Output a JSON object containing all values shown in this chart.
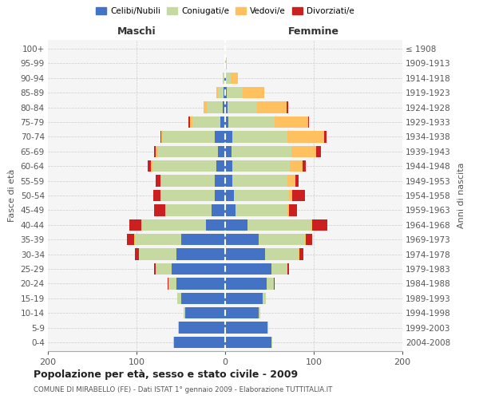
{
  "age_groups": [
    "0-4",
    "5-9",
    "10-14",
    "15-19",
    "20-24",
    "25-29",
    "30-34",
    "35-39",
    "40-44",
    "45-49",
    "50-54",
    "55-59",
    "60-64",
    "65-69",
    "70-74",
    "75-79",
    "80-84",
    "85-89",
    "90-94",
    "95-99",
    "100+"
  ],
  "birth_years": [
    "2004-2008",
    "1999-2003",
    "1994-1998",
    "1989-1993",
    "1984-1988",
    "1979-1983",
    "1974-1978",
    "1969-1973",
    "1964-1968",
    "1959-1963",
    "1954-1958",
    "1949-1953",
    "1944-1948",
    "1939-1943",
    "1934-1938",
    "1929-1933",
    "1924-1928",
    "1919-1923",
    "1914-1918",
    "1909-1913",
    "≤ 1908"
  ],
  "maschi": {
    "celibi": [
      58,
      52,
      45,
      50,
      55,
      60,
      55,
      50,
      22,
      15,
      12,
      12,
      10,
      8,
      12,
      5,
      3,
      2,
      1,
      0,
      0
    ],
    "coniugati": [
      1,
      1,
      2,
      4,
      8,
      18,
      42,
      52,
      72,
      52,
      60,
      60,
      72,
      68,
      58,
      32,
      18,
      6,
      2,
      0,
      0
    ],
    "vedovi": [
      0,
      0,
      0,
      0,
      1,
      0,
      0,
      1,
      1,
      1,
      1,
      1,
      2,
      2,
      2,
      3,
      3,
      2,
      0,
      0,
      0
    ],
    "divorziati": [
      0,
      0,
      0,
      0,
      1,
      2,
      5,
      8,
      13,
      12,
      8,
      5,
      3,
      2,
      1,
      1,
      0,
      0,
      0,
      0,
      0
    ]
  },
  "femmine": {
    "nubili": [
      52,
      48,
      38,
      42,
      47,
      52,
      45,
      38,
      25,
      12,
      10,
      8,
      8,
      7,
      8,
      4,
      3,
      2,
      1,
      0,
      0
    ],
    "coniugate": [
      1,
      1,
      2,
      4,
      8,
      18,
      38,
      52,
      72,
      58,
      62,
      62,
      65,
      68,
      62,
      52,
      33,
      18,
      5,
      1,
      0
    ],
    "vedove": [
      0,
      0,
      0,
      0,
      0,
      0,
      1,
      1,
      1,
      2,
      4,
      9,
      14,
      28,
      42,
      38,
      33,
      24,
      8,
      1,
      0
    ],
    "divorziate": [
      0,
      0,
      0,
      0,
      1,
      2,
      4,
      7,
      17,
      9,
      14,
      4,
      4,
      5,
      2,
      1,
      2,
      0,
      0,
      0,
      0
    ]
  },
  "colors": {
    "celibi": "#4472c4",
    "coniugati": "#c5d9a0",
    "vedovi": "#ffc060",
    "divorziati": "#cc2020"
  },
  "title": "Popolazione per età, sesso e stato civile - 2009",
  "subtitle": "COMUNE DI MIRABELLO (FE) - Dati ISTAT 1° gennaio 2009 - Elaborazione TUTTITALIA.IT",
  "xlabel_left": "Maschi",
  "xlabel_right": "Femmine",
  "ylabel_left": "Fasce di età",
  "ylabel_right": "Anni di nascita",
  "xlim": 200,
  "background_color": "#ffffff"
}
